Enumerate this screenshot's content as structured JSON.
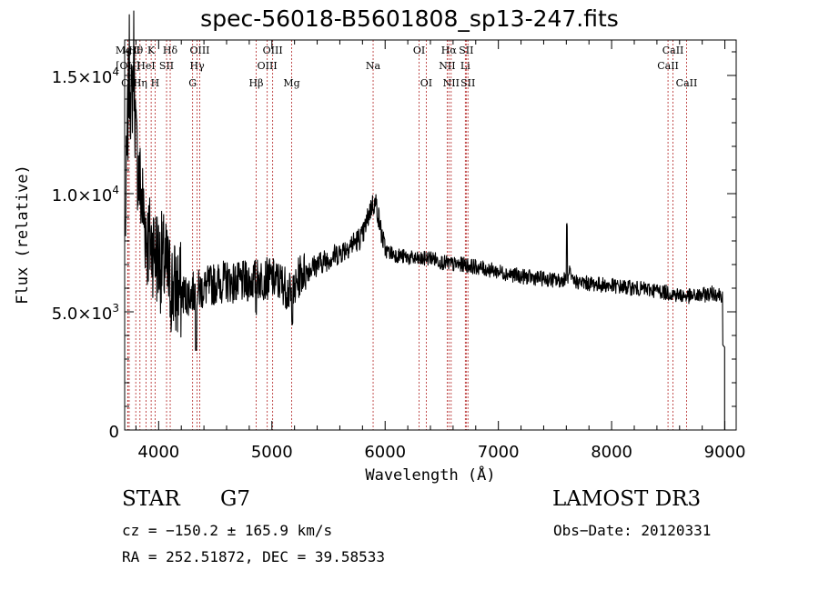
{
  "chart_data": {
    "type": "line",
    "title": "spec-56018-B5601808_sp13-247.fits",
    "xlabel": "Wavelength (Å)",
    "ylabel": "Flux (relative)",
    "xlim": [
      3700,
      9100
    ],
    "ylim": [
      0,
      16500
    ],
    "x_ticks": [
      4000,
      5000,
      6000,
      7000,
      8000,
      9000
    ],
    "x_tick_labels": [
      "4000",
      "5000",
      "6000",
      "7000",
      "8000",
      "9000"
    ],
    "y_ticks": [
      0,
      5000,
      10000,
      15000
    ],
    "y_tick_labels": [
      {
        "mant": "0",
        "exp": ""
      },
      {
        "mant": "5.0×10",
        "exp": "3"
      },
      {
        "mant": "1.0×10",
        "exp": "4"
      },
      {
        "mant": "1.5×10",
        "exp": "4"
      }
    ],
    "line_color": "#000000",
    "marker_color": "#b22222",
    "spectrum_anchors": [
      [
        3700,
        7500
      ],
      [
        3740,
        15500
      ],
      [
        3760,
        13500
      ],
      [
        3780,
        16000
      ],
      [
        3800,
        12000
      ],
      [
        3830,
        10500
      ],
      [
        3860,
        9500
      ],
      [
        3900,
        8000
      ],
      [
        3950,
        7800
      ],
      [
        4000,
        7200
      ],
      [
        4050,
        7000
      ],
      [
        4100,
        6200
      ],
      [
        4150,
        5900
      ],
      [
        4200,
        5800
      ],
      [
        4250,
        5700
      ],
      [
        4300,
        5800
      ],
      [
        4350,
        5900
      ],
      [
        4400,
        6000
      ],
      [
        4500,
        6200
      ],
      [
        4600,
        6300
      ],
      [
        4700,
        6200
      ],
      [
        4800,
        6300
      ],
      [
        4900,
        6400
      ],
      [
        5000,
        6400
      ],
      [
        5100,
        6200
      ],
      [
        5180,
        5600
      ],
      [
        5250,
        6600
      ],
      [
        5400,
        7000
      ],
      [
        5600,
        7500
      ],
      [
        5800,
        8200
      ],
      [
        5880,
        9500
      ],
      [
        5920,
        9600
      ],
      [
        5960,
        8500
      ],
      [
        6000,
        7600
      ],
      [
        6100,
        7400
      ],
      [
        6200,
        7300
      ],
      [
        6300,
        7200
      ],
      [
        6400,
        7300
      ],
      [
        6500,
        7100
      ],
      [
        6600,
        7000
      ],
      [
        6700,
        7000
      ],
      [
        6800,
        6900
      ],
      [
        7000,
        6700
      ],
      [
        7200,
        6500
      ],
      [
        7400,
        6400
      ],
      [
        7550,
        6300
      ],
      [
        7600,
        6500
      ],
      [
        7650,
        6300
      ],
      [
        7800,
        6200
      ],
      [
        8000,
        6100
      ],
      [
        8200,
        6000
      ],
      [
        8400,
        5900
      ],
      [
        8500,
        5800
      ],
      [
        8600,
        5700
      ],
      [
        8700,
        5650
      ],
      [
        8800,
        5700
      ],
      [
        8900,
        5800
      ],
      [
        8990,
        5700
      ]
    ],
    "spectrum_features": [
      [
        4330,
        3500
      ],
      [
        4860,
        5000
      ],
      [
        5180,
        4600
      ],
      [
        7605,
        8600
      ],
      [
        7630,
        6800
      ],
      [
        8985,
        3500
      ],
      [
        8998,
        0
      ]
    ],
    "spectral_lines": [
      {
        "label": "MgII",
        "wavelength": 3727,
        "row": 0
      },
      {
        "label": "[OII]",
        "wavelength": 3727,
        "row": 1
      },
      {
        "label": "OII",
        "wavelength": 3740,
        "row": 2
      },
      {
        "label": "Hθ",
        "wavelength": 3798,
        "row": 0
      },
      {
        "label": "Hη",
        "wavelength": 3835,
        "row": 2
      },
      {
        "label": "K",
        "wavelength": 3934,
        "row": 0
      },
      {
        "label": "HeI",
        "wavelength": 3889,
        "row": 1
      },
      {
        "label": "SII",
        "wavelength": 4070,
        "row": 1
      },
      {
        "label": "H",
        "wavelength": 3969,
        "row": 2
      },
      {
        "label": "Hδ",
        "wavelength": 4102,
        "row": 0
      },
      {
        "label": "OIII",
        "wavelength": 4363,
        "row": 0
      },
      {
        "label": "Hγ",
        "wavelength": 4340,
        "row": 1
      },
      {
        "label": "G",
        "wavelength": 4300,
        "row": 2
      },
      {
        "label": "OIII",
        "wavelength": 5007,
        "row": 0
      },
      {
        "label": "OIII",
        "wavelength": 4959,
        "row": 1
      },
      {
        "label": "Hβ",
        "wavelength": 4861,
        "row": 2
      },
      {
        "label": "Mg",
        "wavelength": 5175,
        "row": 2
      },
      {
        "label": "Na",
        "wavelength": 5894,
        "row": 1
      },
      {
        "label": "OI",
        "wavelength": 6300,
        "row": 0
      },
      {
        "label": "OI",
        "wavelength": 6363,
        "row": 2
      },
      {
        "label": "Hα",
        "wavelength": 6563,
        "row": 0
      },
      {
        "label": "SII",
        "wavelength": 6716,
        "row": 0
      },
      {
        "label": "NII",
        "wavelength": 6548,
        "row": 1
      },
      {
        "label": "Li",
        "wavelength": 6708,
        "row": 1
      },
      {
        "label": "NII",
        "wavelength": 6583,
        "row": 2
      },
      {
        "label": "SII",
        "wavelength": 6731,
        "row": 2
      },
      {
        "label": "CaII",
        "wavelength": 8542,
        "row": 0
      },
      {
        "label": "CaII",
        "wavelength": 8498,
        "row": 1
      },
      {
        "label": "CaII",
        "wavelength": 8662,
        "row": 2
      }
    ]
  },
  "info": {
    "object_class": "STAR",
    "subclass": "G7",
    "survey": "LAMOST DR3",
    "cz": "cz = −150.2 ± 165.9 km/s",
    "obs_date": "Obs−Date: 20120331",
    "radec": "RA = 252.51872, DEC =  39.58533"
  }
}
